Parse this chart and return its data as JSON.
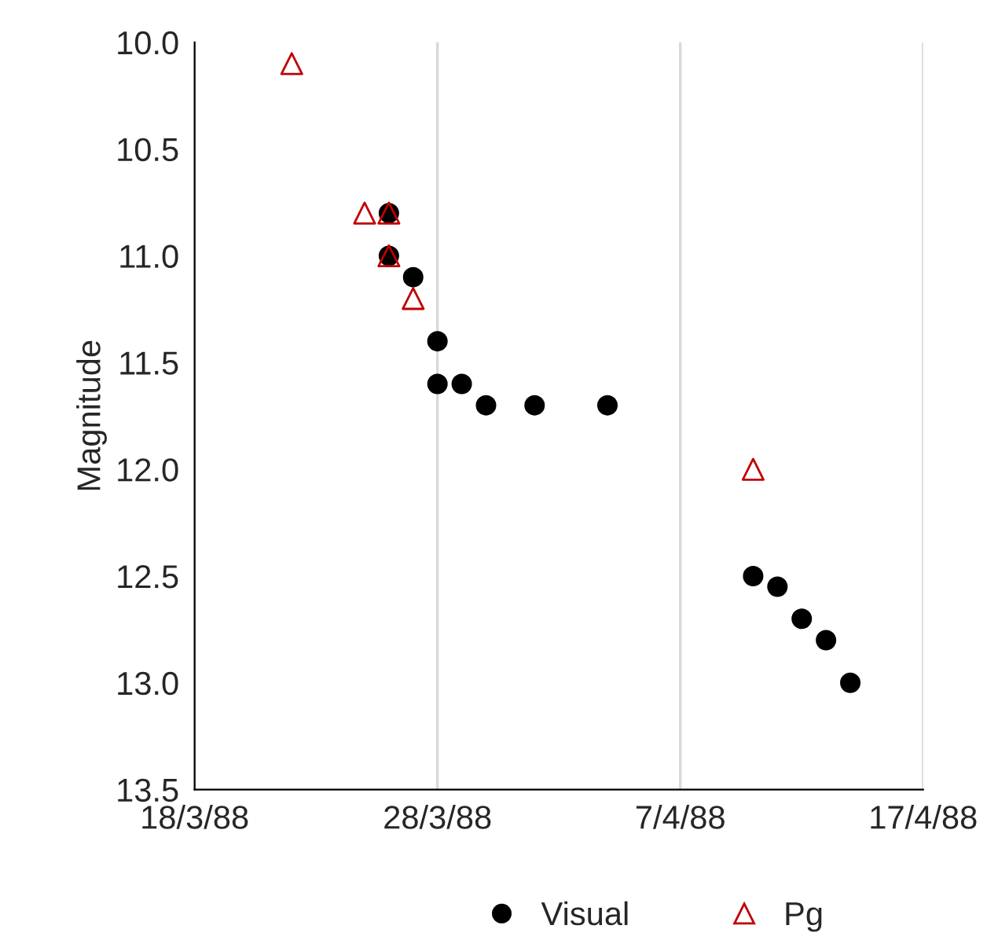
{
  "chart_data": {
    "type": "scatter",
    "ylabel": "Magnitude",
    "xlim": [
      "1988-03-18",
      "1988-04-17"
    ],
    "xticks": [
      {
        "value": "1988-03-18",
        "label": "18/3/88"
      },
      {
        "value": "1988-03-28",
        "label": "28/3/88"
      },
      {
        "value": "1988-04-07",
        "label": "7/4/88"
      },
      {
        "value": "1988-04-17",
        "label": "17/4/88"
      }
    ],
    "ylim": [
      13.5,
      10.0
    ],
    "yticks": [
      {
        "value": 10.0,
        "label": "10.0"
      },
      {
        "value": 10.5,
        "label": "10.5"
      },
      {
        "value": 11.0,
        "label": "11.0"
      },
      {
        "value": 11.5,
        "label": "11.5"
      },
      {
        "value": 12.0,
        "label": "12.0"
      },
      {
        "value": 12.5,
        "label": "12.5"
      },
      {
        "value": 13.0,
        "label": "13.0"
      },
      {
        "value": 13.5,
        "label": "13.5"
      }
    ],
    "grid": "x",
    "legend": "bottom",
    "series": [
      {
        "name": "Visual",
        "color": "#000000",
        "marker": "circle",
        "x": [
          "1988-03-26",
          "1988-03-26",
          "1988-03-27",
          "1988-03-28",
          "1988-03-28",
          "1988-03-29",
          "1988-03-30",
          "1988-04-01",
          "1988-04-04",
          "1988-04-10",
          "1988-04-11",
          "1988-04-12",
          "1988-04-13",
          "1988-04-14"
        ],
        "values": [
          10.8,
          11.0,
          11.1,
          11.4,
          11.6,
          11.6,
          11.7,
          11.7,
          11.7,
          12.5,
          12.55,
          12.7,
          12.8,
          13.0
        ]
      },
      {
        "name": "Pg",
        "color": "#c00000",
        "marker": "triangle",
        "x": [
          "1988-03-22",
          "1988-03-25",
          "1988-03-26",
          "1988-03-26",
          "1988-03-27",
          "1988-04-10"
        ],
        "values": [
          10.1,
          10.8,
          10.8,
          11.0,
          11.2,
          12.0
        ]
      }
    ]
  }
}
